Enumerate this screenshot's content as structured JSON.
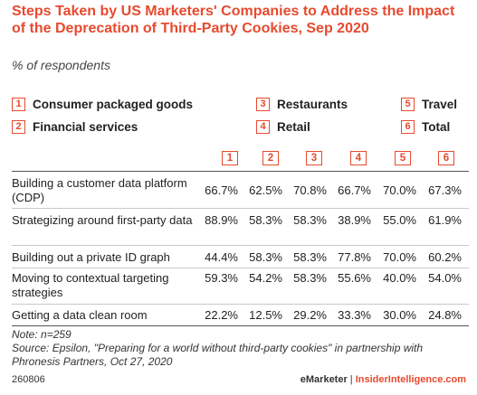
{
  "title": "Steps Taken by US Marketers' Companies to Address the Impact of the Deprecation of Third-Party Cookies, Sep 2020",
  "subtitle": "% of respondents",
  "legend": [
    {
      "num": "1",
      "label": "Consumer packaged goods"
    },
    {
      "num": "2",
      "label": "Financial services"
    },
    {
      "num": "3",
      "label": "Restaurants"
    },
    {
      "num": "4",
      "label": "Retail"
    },
    {
      "num": "5",
      "label": "Travel"
    },
    {
      "num": "6",
      "label": "Total"
    }
  ],
  "chart_data": {
    "type": "table",
    "columns": [
      "1",
      "2",
      "3",
      "4",
      "5",
      "6"
    ],
    "rows": [
      {
        "label": "Building a customer data platform (CDP)",
        "values": [
          "66.7%",
          "62.5%",
          "70.8%",
          "66.7%",
          "70.0%",
          "67.3%"
        ]
      },
      {
        "label": "Strategizing around first-party data",
        "values": [
          "88.9%",
          "58.3%",
          "58.3%",
          "38.9%",
          "55.0%",
          "61.9%"
        ]
      },
      {
        "label": "Building out a private ID graph",
        "values": [
          "44.4%",
          "58.3%",
          "58.3%",
          "77.8%",
          "70.0%",
          "60.2%"
        ]
      },
      {
        "label": "Moving to contextual targeting strategies",
        "values": [
          "59.3%",
          "54.2%",
          "58.3%",
          "55.6%",
          "40.0%",
          "54.0%"
        ]
      },
      {
        "label": "Getting a data clean room",
        "values": [
          "22.2%",
          "12.5%",
          "29.2%",
          "33.3%",
          "30.0%",
          "24.8%"
        ]
      }
    ]
  },
  "note": "Note: n=259",
  "source": "Source: Epsilon, \"Preparing for a world without third-party cookies\" in partnership with Phronesis Partners, Oct 27, 2020",
  "footer_code": "260806",
  "footer_brand_a": "eMarketer",
  "footer_sep": " | ",
  "footer_brand_b": "InsiderIntelligence.com"
}
